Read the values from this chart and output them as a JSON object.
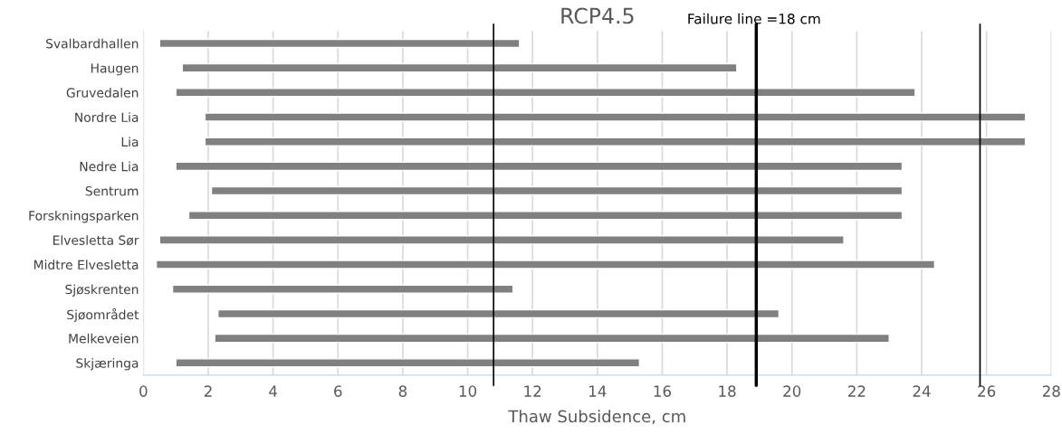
{
  "chart_data": {
    "type": "bar",
    "orientation": "horizontal",
    "title": "RCP4.5",
    "xlabel": "Thaw Subsidence, cm",
    "categories": [
      "Svalbardhallen",
      "Haugen",
      "Gruvedalen",
      "Nordre Lia",
      "Lia",
      "Nedre Lia",
      "Sentrum",
      "Forskningsparken",
      "Elvesletta Sør",
      "Midtre Elvesletta",
      "Sjøskrenten",
      "Sjøområdet",
      "Melkeveien",
      "Skjæringa"
    ],
    "base": [
      0.5,
      1.2,
      1.0,
      1.9,
      1.9,
      1.0,
      2.1,
      1.4,
      0.5,
      0.4,
      0.9,
      2.3,
      2.2,
      1.0
    ],
    "values": [
      11.1,
      17.1,
      22.8,
      25.3,
      25.3,
      22.4,
      21.3,
      22.0,
      21.1,
      24.0,
      10.5,
      17.3,
      20.8,
      14.3
    ],
    "color": "#808080",
    "xlim": [
      0,
      28
    ],
    "xticks": [
      0,
      2,
      4,
      6,
      8,
      10,
      12,
      14,
      16,
      18,
      20,
      22,
      24,
      26,
      28
    ],
    "grid": "x",
    "annotations": [
      "Failure line =18 cm"
    ],
    "ref_lines": [
      {
        "axis": "x",
        "value": 10.8,
        "color": "#000000"
      },
      {
        "axis": "x",
        "value": 18.9,
        "color": "#000000"
      },
      {
        "axis": "x",
        "value": 25.8,
        "color": "#000000"
      }
    ]
  }
}
